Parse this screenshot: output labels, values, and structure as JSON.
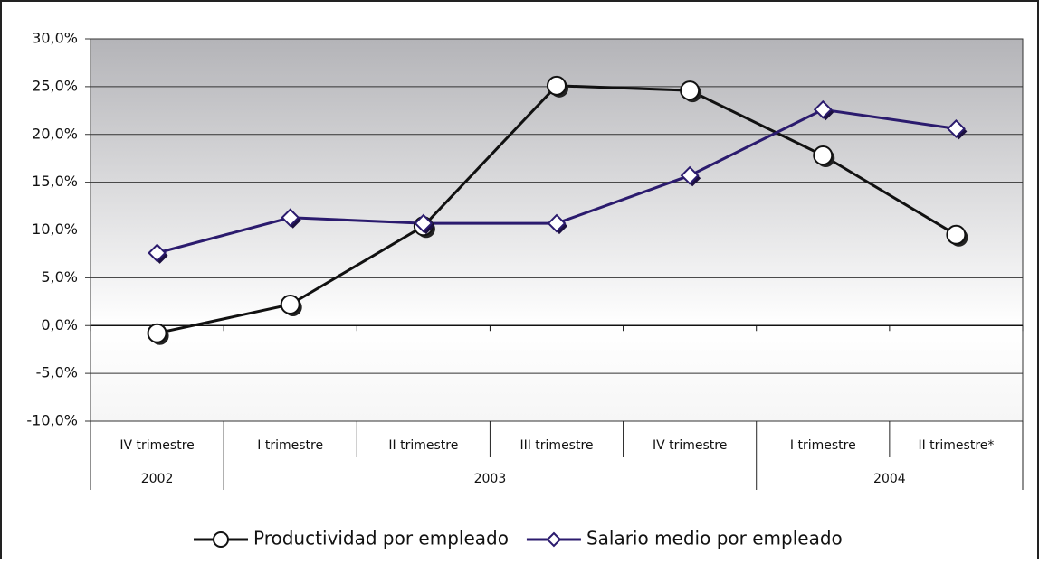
{
  "chart_data": {
    "type": "line",
    "categories": [
      "IV trimestre",
      "I trimestre",
      "II trimestre",
      "III trimestre",
      "IV trimestre",
      "I trimestre",
      "II trimestre*"
    ],
    "category_groups": [
      {
        "label": "2002",
        "count": 1
      },
      {
        "label": "2003",
        "count": 4
      },
      {
        "label": "2004",
        "count": 2
      }
    ],
    "series": [
      {
        "name": "Productividad por empleado",
        "color": "#111111",
        "marker": "circle",
        "values": [
          -0.8,
          2.2,
          10.4,
          25.1,
          24.6,
          17.8,
          9.5
        ]
      },
      {
        "name": "Salario medio por empleado",
        "color": "#2b1b6e",
        "marker": "diamond",
        "values": [
          7.6,
          11.3,
          10.7,
          10.7,
          15.7,
          22.6,
          20.6
        ]
      }
    ],
    "ylim": [
      -10,
      30
    ],
    "yticks": [
      {
        "value": -10,
        "label": "-10,0%"
      },
      {
        "value": -5,
        "label": "-5,0%"
      },
      {
        "value": 0,
        "label": "0,0%"
      },
      {
        "value": 5,
        "label": "5,0%"
      },
      {
        "value": 10,
        "label": "10,0%"
      },
      {
        "value": 15,
        "label": "15,0%"
      },
      {
        "value": 20,
        "label": "20,0%"
      },
      {
        "value": 25,
        "label": "25,0%"
      },
      {
        "value": 30,
        "label": "30,0%"
      }
    ],
    "grid": true,
    "legend": "bottom"
  }
}
